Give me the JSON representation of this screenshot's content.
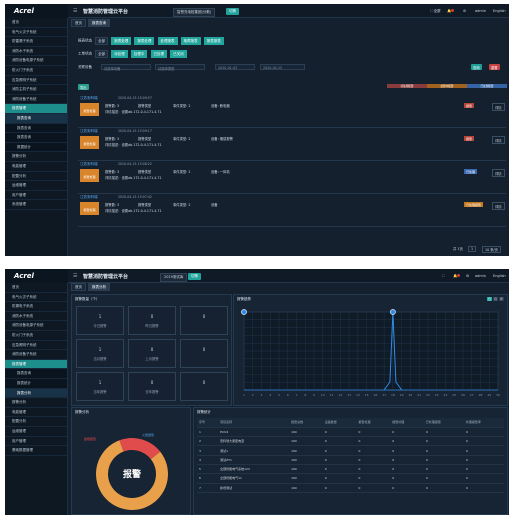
{
  "s1": {
    "logo": "Acrel",
    "app_title": "智慧消防管理云平台",
    "project": "智慧充电桩集团(分散)",
    "project_pill": "切换",
    "top_right": {
      "fullscreen": "全屏",
      "user": "admin",
      "lang": "English"
    },
    "sidebar": [
      {
        "label": "首页",
        "state": ""
      },
      {
        "label": "电气火灾子系统",
        "state": ""
      },
      {
        "label": "防雷漏子系统",
        "state": ""
      },
      {
        "label": "消防水子系统",
        "state": ""
      },
      {
        "label": "消防设备电源子系统",
        "state": ""
      },
      {
        "label": "防火门子系统",
        "state": ""
      },
      {
        "label": "应急照明子系统",
        "state": ""
      },
      {
        "label": "消防主机子系统",
        "state": ""
      },
      {
        "label": "消防设备子系统",
        "state": ""
      },
      {
        "label": "报表管理",
        "state": "active"
      },
      {
        "label": "报表查询",
        "state": "subact"
      },
      {
        "label": "报表查询",
        "state": "sub"
      },
      {
        "label": "报表查询",
        "state": "sub"
      },
      {
        "label": "数据统计",
        "state": "sub"
      },
      {
        "label": "报警分析",
        "state": ""
      },
      {
        "label": "电能管理",
        "state": ""
      },
      {
        "label": "配置分析",
        "state": ""
      },
      {
        "label": "运维管理",
        "state": ""
      },
      {
        "label": "用户管理",
        "state": ""
      },
      {
        "label": "系统管理",
        "state": ""
      }
    ],
    "tabs": [
      "首页",
      "报表查询"
    ],
    "filters": {
      "row1_label": "报表状态",
      "row1_all": "全部",
      "row1_opts": [
        "报表处理",
        "报表处理",
        "处理报表",
        "故障报表",
        "报表报表"
      ],
      "row2_label": "工单状态",
      "row2_all": "全部",
      "row2_opts": [
        "待处理",
        "处理中",
        "已处理",
        "已关闭"
      ],
      "row3_label": "关联设备",
      "select1": "请选择设备",
      "select2": "请选择类型",
      "date_from": "2020-01-03",
      "date_to": "2020-04-15",
      "query": "查询",
      "reset": "重置"
    },
    "export_btn": "导出",
    "legend": [
      {
        "label": "待处理报警",
        "color": "#8a3b3b"
      },
      {
        "label": "处理中报警",
        "color": "#a0621e"
      },
      {
        "label": "已处理报警",
        "color": "#3563a5"
      }
    ],
    "cards": [
      {
        "name": "江苏安科瑞",
        "time": "2020-04-15 15:09:57",
        "icon": "报警处理",
        "f1": "报警数: 3",
        "f2": "报警类型",
        "f3": "事件类型: 2",
        "f4": "设备: 断电器",
        "detail": "详情描述：设置ab.172.0.4.171.4.71",
        "status": "报警",
        "status_color": "#b8433b",
        "op": "详情"
      },
      {
        "name": "江苏安科瑞",
        "time": "2020-04-15 15:09:17",
        "icon": "报警处理",
        "f1": "报警数: 3",
        "f2": "报警类型",
        "f3": "事件类型: 2",
        "f4": "设备: 烟感报警",
        "detail": "详情描述：设置ab.172.0.4.171.4.71",
        "status": "报警",
        "status_color": "#b8433b",
        "op": "详情"
      },
      {
        "name": "江苏安科瑞",
        "time": "2020-04-15 15:08:22",
        "icon": "报警处理",
        "f1": "报警数: 3",
        "f2": "报警类型",
        "f3": "事件类型: 2",
        "f4": "设备: 一体机",
        "detail": "详情描述：设置ab.172.0.4.171.4.71",
        "status": "已处理",
        "status_color": "#3a67b0",
        "op": "详情"
      },
      {
        "name": "江苏安科瑞",
        "time": "2020-04-15 15:07:42",
        "icon": "报警处理",
        "f1": "报警数: 3",
        "f2": "报警类型",
        "f3": "事件类型: 2",
        "f4": "设备",
        "detail": "详情描述：设置ab.172.0.4.171.4.71",
        "status": "已处理报警",
        "status_color": "#c2781f",
        "op": "详情"
      }
    ],
    "pager": {
      "total": "共 1页",
      "page": "1",
      "size": "10 条/页"
    }
  },
  "s2": {
    "logo": "Acrel",
    "app_title": "智慧消防管理云平台",
    "project": "2019测试库",
    "project_pill": "切换",
    "top_right": {
      "user": "admin",
      "lang": "English"
    },
    "sidebar": [
      {
        "label": "首页",
        "state": ""
      },
      {
        "label": "电气火灾子系统",
        "state": ""
      },
      {
        "label": "防漏电子系统",
        "state": ""
      },
      {
        "label": "消防水子系统",
        "state": ""
      },
      {
        "label": "消防设备电源子系统",
        "state": ""
      },
      {
        "label": "防火门子系统",
        "state": ""
      },
      {
        "label": "应急照明子系统",
        "state": ""
      },
      {
        "label": "消防设备子系统",
        "state": ""
      },
      {
        "label": "报表管理",
        "state": "active"
      },
      {
        "label": "报表查询",
        "state": "sub"
      },
      {
        "label": "报表统计",
        "state": "sub"
      },
      {
        "label": "报表分析",
        "state": "subact"
      },
      {
        "label": "报警分析",
        "state": ""
      },
      {
        "label": "电能管理",
        "state": ""
      },
      {
        "label": "配置分析",
        "state": ""
      },
      {
        "label": "运维管理",
        "state": ""
      },
      {
        "label": "用户管理",
        "state": ""
      },
      {
        "label": "基础数据管理",
        "state": ""
      }
    ],
    "tabs": [
      "首页",
      "报表分析"
    ],
    "stats_title": "报警数量（个）",
    "stats": [
      {
        "value": "1",
        "label": "今日报警"
      },
      {
        "value": "0",
        "label": "昨日报警"
      },
      {
        "value": "0",
        "label": ""
      },
      {
        "value": "1",
        "label": "当月报警"
      },
      {
        "value": "0",
        "label": "上月报警"
      },
      {
        "value": "0",
        "label": ""
      },
      {
        "value": "1",
        "label": "当年报警"
      },
      {
        "value": "0",
        "label": "去年报警"
      },
      {
        "value": "0",
        "label": ""
      }
    ],
    "trend_title": "报警趋势",
    "pie_title": "报警分析",
    "pie_center": "报警",
    "pie_labels": [
      "故障报警",
      "火警报警"
    ],
    "table_title": "报警统计",
    "table_headers": [
      "序号",
      "项目名称",
      "报警总数",
      "设备数量",
      "报警处理",
      "报警处理",
      "已处理报警",
      "处理报警率"
    ],
    "table_rows": [
      [
        "1",
        "ECU4",
        "100",
        "0",
        "0",
        "0",
        "0",
        "0"
      ],
      [
        "2",
        "安科瑞大厦配电室",
        "100",
        "0",
        "0",
        "0",
        "0",
        "0"
      ],
      [
        "3",
        "测试1",
        "100",
        "0",
        "0",
        "0",
        "0",
        "0"
      ],
      [
        "4",
        "测试ZT1",
        "100",
        "0",
        "0",
        "0",
        "0",
        "0"
      ],
      [
        "5",
        "全部智能电气系统123",
        "100",
        "0",
        "0",
        "0",
        "0",
        "0"
      ],
      [
        "6",
        "全部智能电气11",
        "100",
        "0",
        "0",
        "0",
        "0",
        "0"
      ],
      [
        "7",
        "新增测试",
        "100",
        "0",
        "0",
        "0",
        "0",
        "0"
      ]
    ],
    "chart_data": [
      {
        "type": "line",
        "title": "报警趋势",
        "x": [
          "1",
          "2",
          "3",
          "4",
          "5",
          "6",
          "7",
          "8",
          "9",
          "10",
          "11",
          "12",
          "13",
          "14",
          "15",
          "16",
          "17",
          "18",
          "19",
          "20",
          "21",
          "22",
          "23",
          "24",
          "25",
          "26",
          "27",
          "28",
          "29",
          "30"
        ],
        "series": [
          {
            "values": [
              1,
              0,
              0,
              0,
              0,
              0,
              0,
              0,
              0,
              0,
              0,
              0,
              0,
              0,
              0,
              0,
              0,
              0,
              0,
              0,
              0,
              0,
              0,
              0,
              0,
              0,
              0,
              0,
              0,
              0
            ]
          },
          {
            "values": [
              0,
              0,
              0,
              0,
              0,
              0,
              0,
              0,
              0,
              0,
              0,
              0,
              0,
              0,
              0,
              0,
              0,
              1,
              0,
              0,
              0,
              0,
              0,
              0,
              0,
              0,
              0,
              0,
              0,
              0
            ]
          }
        ],
        "ylim": [
          0,
          1
        ],
        "grid": true
      },
      {
        "type": "pie",
        "title": "报警分析",
        "categories": [
          "火警报警",
          "故障报警"
        ],
        "values": [
          80,
          20
        ],
        "colors": [
          "#e8a04a",
          "#e04b4b"
        ]
      }
    ]
  }
}
